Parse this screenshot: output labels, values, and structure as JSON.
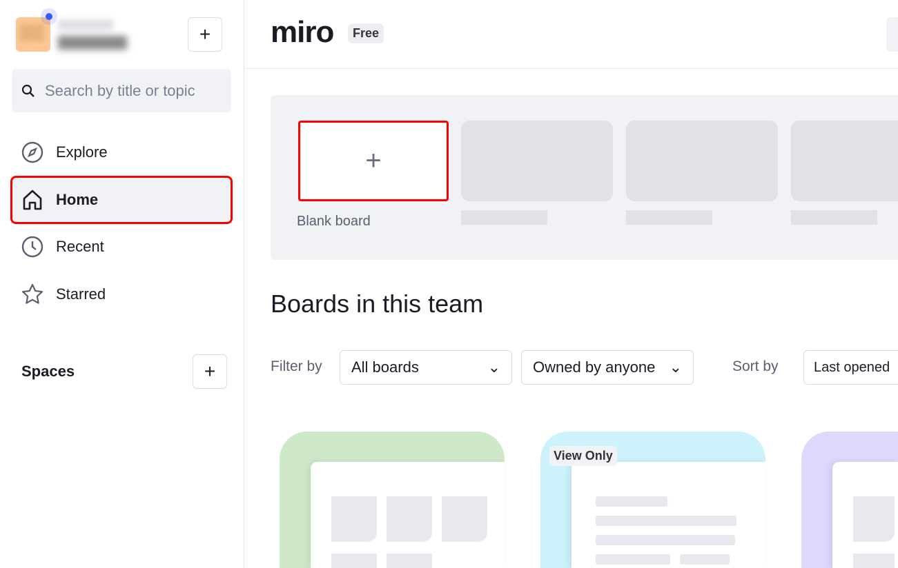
{
  "sidebar": {
    "add_label": "+",
    "search_placeholder": "Search by title or topic",
    "items": [
      {
        "label": "Explore",
        "icon": "compass-icon"
      },
      {
        "label": "Home",
        "icon": "home-icon",
        "active": true
      },
      {
        "label": "Recent",
        "icon": "clock-icon"
      },
      {
        "label": "Starred",
        "icon": "star-icon"
      }
    ],
    "spaces_label": "Spaces",
    "spaces_add": "+"
  },
  "header": {
    "logo": "miro",
    "plan_badge": "Free"
  },
  "templates": {
    "blank_plus": "+",
    "blank_label": "Blank board"
  },
  "boards": {
    "title": "Boards in this team",
    "filter_label": "Filter by",
    "filter_value": "All boards",
    "owner_value": "Owned by anyone",
    "sort_label": "Sort by",
    "sort_value": "Last opened",
    "cards": [
      {
        "color": "#cfe8ca"
      },
      {
        "color": "#ccf2fc",
        "badge": "View Only"
      },
      {
        "color": "#dcd9fd"
      }
    ]
  },
  "colors": {
    "accent": "#3859ff",
    "highlight": "#ff0000"
  }
}
